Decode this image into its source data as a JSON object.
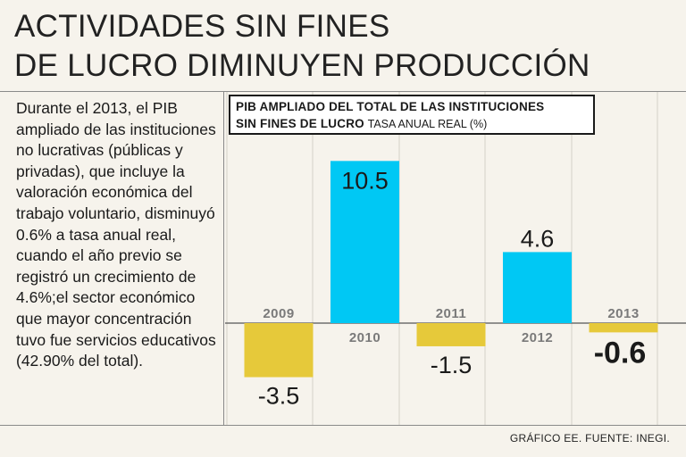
{
  "headline": {
    "line1": "ACTIVIDADES SIN FINES",
    "line2": "DE LUCRO DIMINUYEN PRODUCCIÓN"
  },
  "body_text": "Durante el 2013, el PIB ampliado de las instituciones no lucrativas (públicas y privadas), que incluye la valoración económica del trabajo voluntario, disminuyó 0.6% a tasa anual real, cuando el año previo se registró un crecimiento de 4.6%;el sector económico que mayor concentración tuvo fue servicios educativos (42.90% del total).",
  "chart_box": {
    "title_bold_1": "PIB AMPLIADO DEL TOTAL DE LAS INSTITUCIONES",
    "title_bold_2": "SIN FINES DE LUCRO",
    "title_light": "TASA ANUAL REAL (%)"
  },
  "source": "GRÁFICO EE. FUENTE: INEGI.",
  "colors": {
    "positive": "#00c8f4",
    "negative": "#e6c93a",
    "background": "#f6f3ec",
    "grid": "#d4d0c8",
    "year_label": "#7a7a7a"
  },
  "chart_data": {
    "type": "bar",
    "title": "PIB AMPLIADO DEL TOTAL DE LAS INSTITUCIONES SIN FINES DE LUCRO TASA ANUAL REAL (%)",
    "categories": [
      "2009",
      "2010",
      "2011",
      "2012",
      "2013"
    ],
    "values": [
      -3.5,
      10.5,
      -1.5,
      4.6,
      -0.6
    ],
    "value_labels": [
      "-3.5",
      "10.5",
      "-1.5",
      "4.6",
      "-0.6"
    ],
    "xlabel": "",
    "ylabel": "",
    "ylim": [
      -5,
      13
    ]
  }
}
